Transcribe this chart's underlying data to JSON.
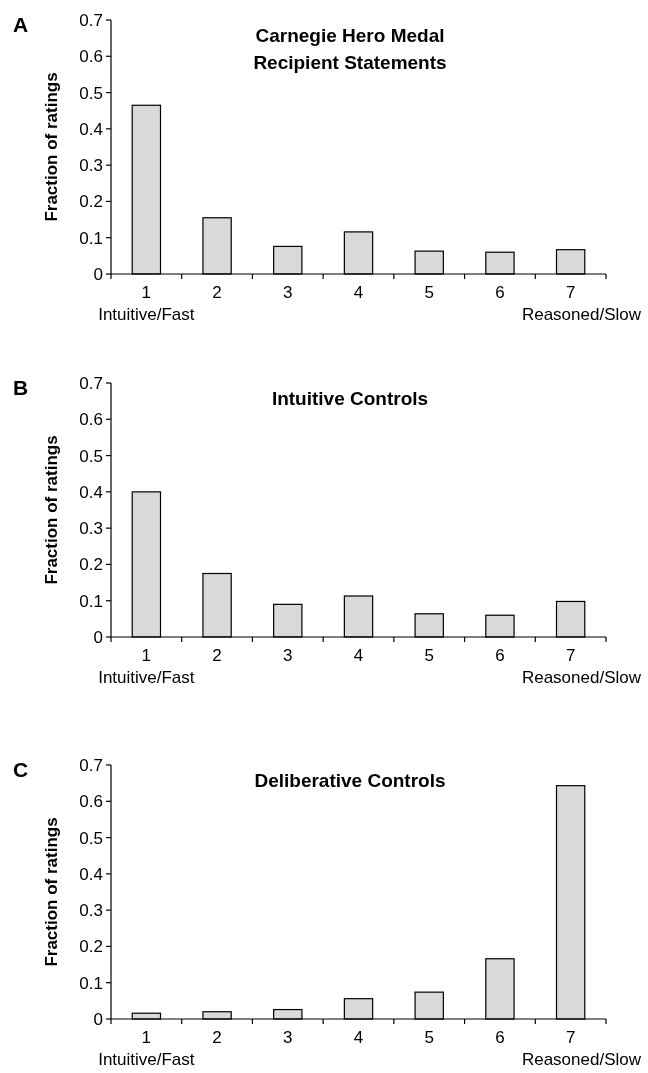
{
  "chart_data": [
    {
      "type": "bar",
      "title": "Carnegie Hero Medal\nRecipient Statements",
      "ylabel": "Fraction of ratings",
      "categories": [
        "1",
        "2",
        "3",
        "4",
        "5",
        "6",
        "7"
      ],
      "values": [
        0.465,
        0.155,
        0.076,
        0.116,
        0.063,
        0.06,
        0.067
      ],
      "color": "#d9d9d9",
      "ylim": [
        0,
        0.7
      ],
      "yticks": [
        0,
        0.1,
        0.2,
        0.3,
        0.4,
        0.5,
        0.6,
        0.7
      ],
      "grid": false,
      "annotations": [
        "A",
        "Intuitive/Fast",
        "Reasoned/Slow"
      ]
    },
    {
      "type": "bar",
      "title": "Intuitive Controls",
      "ylabel": "Fraction of ratings",
      "categories": [
        "1",
        "2",
        "3",
        "4",
        "5",
        "6",
        "7"
      ],
      "values": [
        0.4,
        0.175,
        0.09,
        0.113,
        0.064,
        0.06,
        0.098
      ],
      "color": "#d9d9d9",
      "ylim": [
        0,
        0.7
      ],
      "yticks": [
        0,
        0.1,
        0.2,
        0.3,
        0.4,
        0.5,
        0.6,
        0.7
      ],
      "grid": false,
      "annotations": [
        "B",
        "Intuitive/Fast",
        "Reasoned/Slow"
      ]
    },
    {
      "type": "bar",
      "title": "Deliberative Controls",
      "ylabel": "Fraction of ratings",
      "categories": [
        "1",
        "2",
        "3",
        "4",
        "5",
        "6",
        "7"
      ],
      "values": [
        0.016,
        0.02,
        0.026,
        0.056,
        0.074,
        0.166,
        0.643
      ],
      "color": "#d9d9d9",
      "ylim": [
        0,
        0.7
      ],
      "yticks": [
        0,
        0.1,
        0.2,
        0.3,
        0.4,
        0.5,
        0.6,
        0.7
      ],
      "grid": false,
      "annotations": [
        "C",
        "Intuitive/Fast",
        "Reasoned/Slow"
      ]
    }
  ]
}
